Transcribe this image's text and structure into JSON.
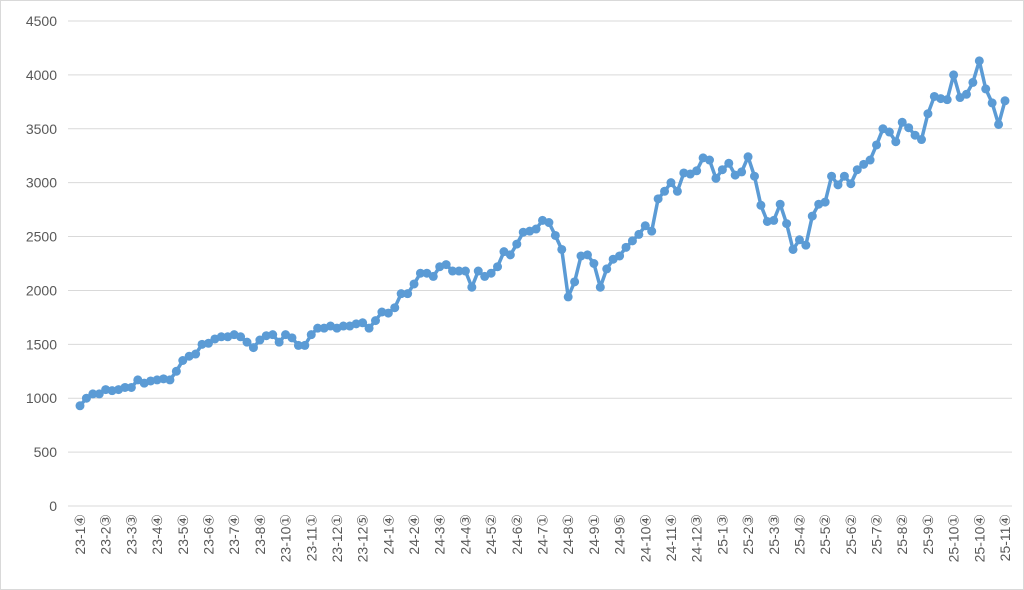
{
  "chart_data": {
    "type": "line",
    "categories": [
      "23-1④",
      null,
      null,
      null,
      "23-2③",
      null,
      null,
      null,
      "23-3③",
      null,
      null,
      null,
      "23-4④",
      null,
      null,
      null,
      "23-5④",
      null,
      null,
      null,
      "23-6④",
      null,
      null,
      null,
      "23-7④",
      null,
      null,
      null,
      "23-8④",
      null,
      null,
      null,
      "23-10①",
      null,
      null,
      null,
      "23-11①",
      null,
      null,
      null,
      "23-12①",
      null,
      null,
      null,
      "23-12⑤",
      null,
      null,
      null,
      "24-1④",
      null,
      null,
      null,
      "24-2④",
      null,
      null,
      null,
      "24-3④",
      null,
      null,
      null,
      "24-4③",
      null,
      null,
      null,
      "24-5②",
      null,
      null,
      null,
      "24-6②",
      null,
      null,
      null,
      "24-7①",
      null,
      null,
      null,
      "24-8①",
      null,
      null,
      null,
      "24-9①",
      null,
      null,
      null,
      "24-9⑤",
      null,
      null,
      null,
      "24-10④",
      null,
      null,
      null,
      "24-11④",
      null,
      null,
      null,
      "24-12③",
      null,
      null,
      null,
      "25-1③",
      null,
      null,
      null,
      "25-2③",
      null,
      null,
      null,
      "25-3③",
      null,
      null,
      null,
      "25-4②",
      null,
      null,
      null,
      "25-5②",
      null,
      null,
      null,
      "25-6②",
      null,
      null,
      null,
      "25-7②",
      null,
      null,
      null,
      "25-8②",
      null,
      null,
      null,
      "25-9①",
      null,
      null,
      null,
      "25-10①",
      null,
      null,
      null,
      "25-10④",
      null,
      null,
      null,
      "25-11④"
    ],
    "values": [
      930,
      1000,
      1040,
      1040,
      1080,
      1070,
      1080,
      1100,
      1100,
      1170,
      1140,
      1160,
      1170,
      1180,
      1170,
      1250,
      1350,
      1390,
      1410,
      1500,
      1510,
      1550,
      1570,
      1570,
      1590,
      1570,
      1520,
      1470,
      1540,
      1580,
      1590,
      1520,
      1590,
      1560,
      1490,
      1490,
      1590,
      1650,
      1650,
      1670,
      1650,
      1670,
      1670,
      1690,
      1700,
      1650,
      1720,
      1800,
      1790,
      1840,
      1970,
      1970,
      2060,
      2160,
      2160,
      2130,
      2220,
      2240,
      2180,
      2180,
      2180,
      2030,
      2180,
      2130,
      2160,
      2220,
      2360,
      2330,
      2430,
      2540,
      2550,
      2570,
      2650,
      2630,
      2510,
      2380,
      1940,
      2080,
      2320,
      2330,
      2250,
      2030,
      2200,
      2290,
      2320,
      2400,
      2460,
      2520,
      2600,
      2550,
      2850,
      2920,
      3000,
      2920,
      3090,
      3080,
      3110,
      3230,
      3210,
      3040,
      3120,
      3180,
      3070,
      3100,
      3240,
      3060,
      2790,
      2640,
      2650,
      2800,
      2620,
      2380,
      2470,
      2420,
      2690,
      2800,
      2820,
      3060,
      2980,
      3060,
      2990,
      3120,
      3170,
      3210,
      3350,
      3500,
      3470,
      3380,
      3560,
      3510,
      3440,
      3400,
      3640,
      3800,
      3780,
      3770,
      4000,
      3790,
      3820,
      3930,
      4130,
      3870,
      3740,
      3540,
      3760
    ],
    "color": "#5b9bd5",
    "ylim": [
      0,
      4500
    ],
    "yticks": [
      0,
      500,
      1000,
      1500,
      2000,
      2500,
      3000,
      3500,
      4000,
      4500
    ],
    "grid": true
  }
}
